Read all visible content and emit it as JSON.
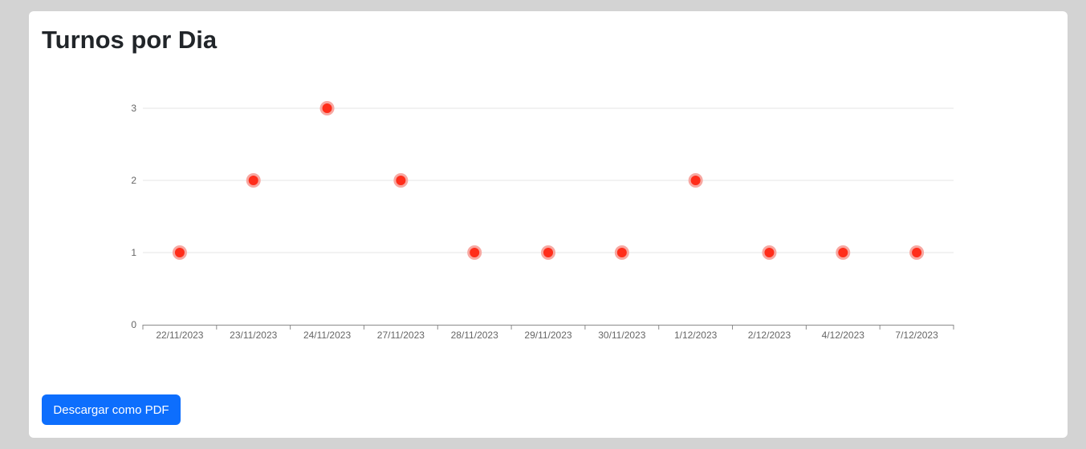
{
  "page": {
    "title": "Turnos por Dia"
  },
  "actions": {
    "download_pdf_label": "Descargar como PDF"
  },
  "colors": {
    "point_fill": "#ff2d1a",
    "point_halo": "#f7a8a2",
    "button": "#0d6efd"
  },
  "chart_data": {
    "type": "scatter",
    "categories": [
      "22/11/2023",
      "23/11/2023",
      "24/11/2023",
      "27/11/2023",
      "28/11/2023",
      "29/11/2023",
      "30/11/2023",
      "1/12/2023",
      "2/12/2023",
      "4/12/2023",
      "7/12/2023"
    ],
    "values": [
      1,
      2,
      3,
      2,
      1,
      1,
      1,
      2,
      1,
      1,
      1
    ],
    "ylim": [
      0,
      3
    ],
    "yticks": [
      "0",
      "1",
      "2",
      "3"
    ],
    "grid": true,
    "legend": "none"
  }
}
